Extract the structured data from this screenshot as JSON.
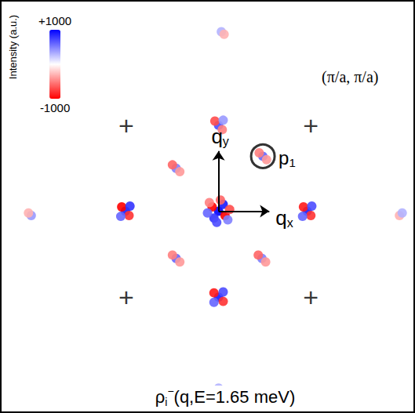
{
  "chart_data": {
    "type": "scatter",
    "title": {
      "base": "ρ",
      "subscript": "i",
      "superscript": "−",
      "rest": "(q,E=1.65 meV)"
    },
    "xlim": [
      -2.36,
      2.12
    ],
    "ylim": [
      -2.34,
      2.45
    ],
    "tick_labels": false,
    "grid": false,
    "axis_arrows": [
      {
        "direction": "x",
        "text": "q",
        "subscript": "x"
      },
      {
        "direction": "y",
        "text": "q",
        "subscript": "y"
      }
    ],
    "points": {
      "x": [
        0,
        -0.07,
        0.07,
        0.05,
        -0.05,
        0.12,
        -0.12,
        0.02,
        -0.02,
        0.1,
        -0.1,
        0.96,
        0.92,
        1.0,
        1.01,
        0.91,
        -1.01,
        -1.05,
        -0.97,
        -0.96,
        -1.06,
        0,
        -0.04,
        0.04,
        0.05,
        0,
        -0.05,
        0.05,
        0.05,
        -0.05,
        0.48,
        0.44,
        0.52,
        -0.46,
        -0.5,
        -0.42,
        -0.46,
        -0.5,
        -0.42,
        0.47,
        0.43,
        0.51,
        0.03,
        0.06,
        0.03,
        0,
        -2.03,
        -2.06,
        1.96,
        1.99
      ],
      "y": [
        0,
        0.05,
        -0.05,
        0.08,
        -0.08,
        0.02,
        -0.02,
        0.13,
        -0.13,
        -0.1,
        0.1,
        0,
        0.05,
        -0.05,
        0.06,
        -0.06,
        0,
        0.05,
        -0.05,
        0.06,
        -0.06,
        1.0,
        1.05,
        0.95,
        1.06,
        -1.0,
        -0.95,
        -1.05,
        -0.94,
        -1.06,
        0.64,
        0.68,
        0.6,
        0.5,
        0.54,
        0.46,
        -0.55,
        -0.51,
        -0.59,
        -0.55,
        -0.51,
        -0.59,
        2.09,
        2.06,
        -2.09,
        -2.06,
        -0.05,
        -0.02,
        -0.05,
        -0.02
      ],
      "intensity": [
        1000,
        -1000,
        -1000,
        900,
        800,
        -700,
        600,
        -600,
        700,
        500,
        -500,
        900,
        -900,
        -800,
        700,
        600,
        900,
        -1000,
        -800,
        800,
        600,
        700,
        -700,
        -500,
        400,
        900,
        -900,
        -800,
        700,
        600,
        600,
        -500,
        -400,
        500,
        -600,
        -400,
        600,
        -500,
        -400,
        500,
        -600,
        -400,
        300,
        -300,
        -400,
        300,
        400,
        -300,
        -300,
        300
      ]
    },
    "colorbar": {
      "title": "Intensity (a.u.)",
      "range": [
        -1000,
        1000
      ],
      "ticks": [
        {
          "value": 1000,
          "label": "+1000"
        },
        {
          "value": -1000,
          "label": "-1000"
        }
      ],
      "colors": [
        "#ff0000",
        "#ffffff",
        "#0000ff"
      ]
    },
    "markers": [
      {
        "x": -1,
        "y": 1,
        "label": "+"
      },
      {
        "x": 1,
        "y": 1,
        "label": "+"
      },
      {
        "x": -1,
        "y": -1,
        "label": "+"
      },
      {
        "x": 1,
        "y": -1,
        "label": "+"
      }
    ],
    "corner_label": "(π/a, π/a)",
    "highlight": {
      "x": 0.48,
      "y": 0.64,
      "text": "p",
      "subscript": "1"
    }
  }
}
